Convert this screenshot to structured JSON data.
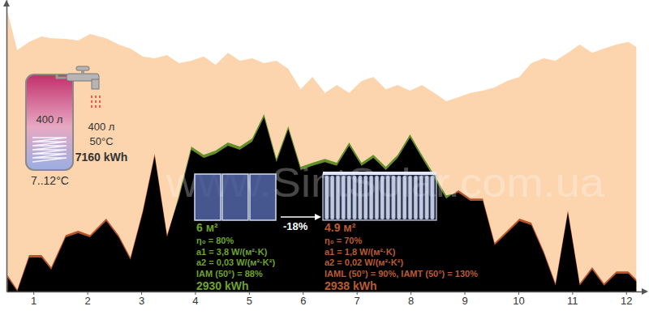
{
  "chart_data": {
    "type": "area",
    "x": [
      0.52,
      0.7,
      0.92,
      1.15,
      1.33,
      1.6,
      1.83,
      2.05,
      2.35,
      2.58,
      2.8,
      3.03,
      3.25,
      3.48,
      3.7,
      3.93,
      4.16,
      4.38,
      4.61,
      4.83,
      5.06,
      5.28,
      5.51,
      5.73,
      5.96,
      6.18,
      6.41,
      6.63,
      6.86,
      7.09,
      7.31,
      7.54,
      7.76,
      7.99,
      8.21,
      8.44,
      8.66,
      8.89,
      9.11,
      9.34,
      9.56,
      9.79,
      10.02,
      10.24,
      10.47,
      10.69,
      10.92,
      11.14,
      11.37,
      11.59,
      11.82,
      12.04,
      12.19
    ],
    "xlim": [
      0.5,
      12.35
    ],
    "xticks": [
      1,
      2,
      3,
      4,
      5,
      6,
      7,
      8,
      9,
      10,
      11,
      12
    ],
    "ylim": [
      0,
      100
    ],
    "yticks": [],
    "tick_labels": "x",
    "series": [
      {
        "type": "area",
        "color": "#fcd5ae",
        "values": [
          95.8,
          82.8,
          85.6,
          87.5,
          86.9,
          86.7,
          86.1,
          88.3,
          86.9,
          84.7,
          83.3,
          80.6,
          80.0,
          81.1,
          78.3,
          79.2,
          80.6,
          77.8,
          81.9,
          79.2,
          80.0,
          78.3,
          79.2,
          76.4,
          69.4,
          73.6,
          68.1,
          70.8,
          68.1,
          72.2,
          73.6,
          69.4,
          70.8,
          68.9,
          70.8,
          68.1,
          65.3,
          66.7,
          68.1,
          68.9,
          70.0,
          72.2,
          73.6,
          78.3,
          80.0,
          79.2,
          81.9,
          84.7,
          81.9,
          83.3,
          84.7,
          85.6,
          83.9
        ]
      },
      {
        "type": "area",
        "color": "#5f9128",
        "values": [
          4.8,
          0.0,
          11.7,
          11.7,
          7.5,
          18.6,
          20.0,
          18.6,
          24.2,
          18.6,
          10.9,
          27.0,
          46.4,
          18.6,
          33.0,
          49.7,
          46.9,
          48.3,
          51.1,
          49.7,
          52.5,
          60.8,
          45.5,
          56.7,
          42.8,
          44.2,
          45.5,
          44.2,
          51.1,
          44.2,
          46.9,
          42.8,
          46.9,
          53.9,
          46.9,
          40.0,
          33.0,
          33.9,
          31.1,
          31.1,
          15.9,
          20.0,
          24.2,
          22.8,
          13.1,
          2.0,
          27.0,
          2.0,
          7.5,
          2.0,
          6.1,
          6.1,
          3.4
        ]
      },
      {
        "type": "area",
        "color": "#b5532a",
        "values": [
          5.6,
          0.6,
          12.5,
          12.5,
          8.3,
          19.4,
          20.8,
          19.4,
          25.0,
          19.4,
          11.7,
          27.8,
          47.2,
          19.4,
          31.9,
          48.6,
          45.8,
          47.2,
          50.0,
          48.6,
          51.4,
          59.7,
          44.4,
          55.6,
          41.7,
          43.1,
          44.4,
          43.1,
          50.0,
          43.1,
          45.8,
          41.7,
          45.8,
          52.8,
          45.8,
          38.9,
          31.9,
          34.7,
          31.9,
          31.9,
          16.7,
          20.8,
          25.0,
          23.6,
          13.9,
          2.8,
          27.8,
          2.8,
          8.3,
          2.8,
          6.9,
          6.9,
          4.2
        ]
      }
    ],
    "annotations": {
      "watermark": "www.SintSolar.com.ua",
      "tank": {
        "volume": "400 л",
        "draw_volume": "400 л",
        "draw_temperature": "50°C",
        "energy": "7160 kWh",
        "cold_temperature": "7..12°C"
      },
      "flat_collector": {
        "area": "6 м²",
        "lines": [
          "η₀ = 80%",
          "a1 = 3,8 W/(м²·K)",
          "a2 = 0,03 W/(м²·K²)",
          "IAM (50°) = 88%"
        ],
        "energy": "2930 kWh"
      },
      "comparison": "-18%",
      "tube_collector": {
        "area": "4.9 м²",
        "lines": [
          "η₀ = 70%",
          "a1 = 1,8 W/(м²·K)",
          "a2 = 0,02 W/(м²·K²)",
          "IAML (50°) = 90%, IAMT (50°) = 130%"
        ],
        "energy": "2938 kWh"
      }
    }
  }
}
